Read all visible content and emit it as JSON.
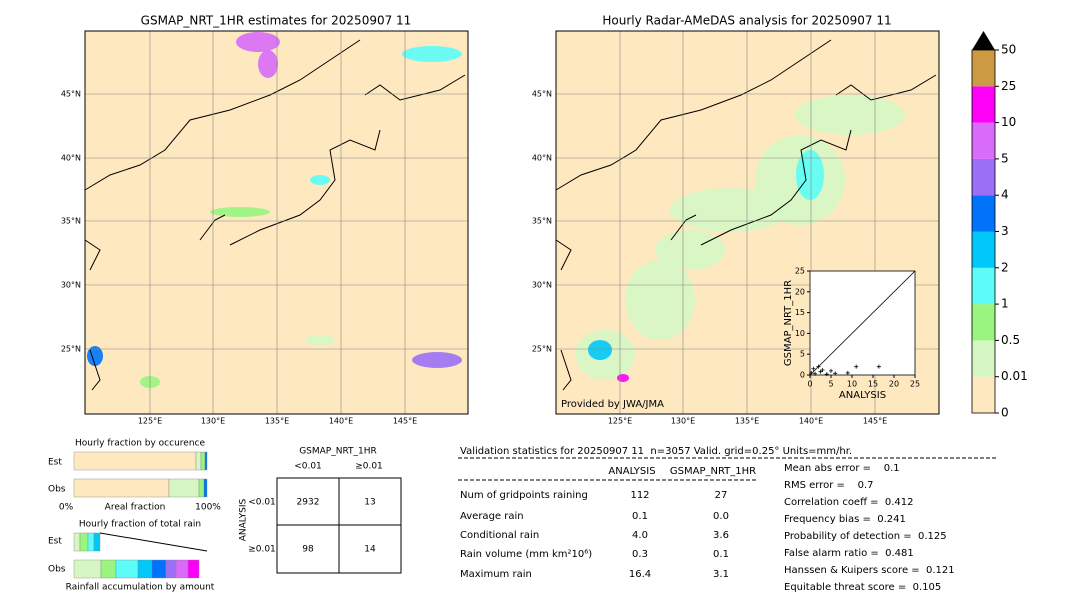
{
  "maps": [
    {
      "title": "GSMAP_NRT_1HR estimates for 20250907 11",
      "lat_labels": [
        "45°N",
        "40°N",
        "35°N",
        "30°N",
        "25°N"
      ],
      "lon_labels": [
        "125°E",
        "130°E",
        "135°E",
        "140°E",
        "145°E"
      ]
    },
    {
      "title": "Hourly Radar-AMeDAS analysis for 20250907 11",
      "lat_labels": [
        "45°N",
        "40°N",
        "35°N",
        "30°N",
        "25°N"
      ],
      "lon_labels": [
        "125°E",
        "130°E",
        "135°E",
        "140°E",
        "145°E"
      ],
      "credit": "Provided by JWA/JMA"
    }
  ],
  "colorbar": {
    "ticks": [
      0,
      0.01,
      0.5,
      1,
      2,
      3,
      4,
      5,
      10,
      25,
      50
    ],
    "colors": [
      "#fde8c0",
      "#d6f7c4",
      "#99f57f",
      "#5cfdf8",
      "#00c8f9",
      "#0073fa",
      "#9b70f7",
      "#d86bfa",
      "#fd00f8",
      "#cc9a42"
    ]
  },
  "scatter": {
    "type": "scatter",
    "xlabel": "ANALYSIS",
    "ylabel": "GSMAP_NRT_1HR",
    "xlim": [
      0,
      25
    ],
    "ylim": [
      0,
      25
    ],
    "xticks": [
      0,
      5,
      10,
      15,
      20,
      25
    ],
    "yticks": [
      0,
      5,
      10,
      15,
      20,
      25
    ],
    "x": [
      0.3,
      0.8,
      1.2,
      2,
      2.5,
      3,
      4,
      5,
      6,
      9,
      11,
      16.4
    ],
    "y": [
      0.5,
      1.5,
      0.3,
      2,
      0.8,
      1.2,
      0.2,
      1,
      0.4,
      0.5,
      2,
      2
    ]
  },
  "fraction": {
    "occurrence_title": "Hourly fraction by occurence",
    "total_title": "Hourly fraction of total rain",
    "row_labels": [
      "Est",
      "Obs"
    ],
    "axis_labels": [
      "0%",
      "Areal fraction",
      "100%"
    ],
    "footer": "Rainfall accumulation by amount"
  },
  "contingency": {
    "title": "GSMAP_NRT_1HR",
    "col_labels": [
      "<0.01",
      "≥0.01"
    ],
    "row_axis": "ANALYSIS",
    "row_labels": [
      "<0.01",
      "≥0.01"
    ],
    "cells": [
      [
        "2932",
        "13"
      ],
      [
        "98",
        "14"
      ]
    ]
  },
  "validation": {
    "header": "Validation statistics for 20250907 11  n=3057 Valid. grid=0.25° Units=mm/hr.",
    "columns": [
      "ANALYSIS",
      "GSMAP_NRT_1HR"
    ],
    "rows": [
      {
        "label": "Num of gridpoints raining",
        "values": [
          "112",
          "27"
        ]
      },
      {
        "label": "Average rain",
        "values": [
          "0.1",
          "0.0"
        ]
      },
      {
        "label": "Conditional rain",
        "values": [
          "4.0",
          "3.6"
        ]
      },
      {
        "label": "Rain volume (mm km²10⁶)",
        "values": [
          "0.3",
          "0.1"
        ]
      },
      {
        "label": "Maximum rain",
        "values": [
          "16.4",
          "3.1"
        ]
      }
    ],
    "scores": [
      "Mean abs error =    0.1",
      "RMS error =    0.7",
      "Correlation coeff =  0.412",
      "Frequency bias =  0.241",
      "Probability of detection =  0.125",
      "False alarm ratio =  0.481",
      "Hanssen & Kuipers score =  0.121",
      "Equitable threat score =  0.105"
    ]
  }
}
